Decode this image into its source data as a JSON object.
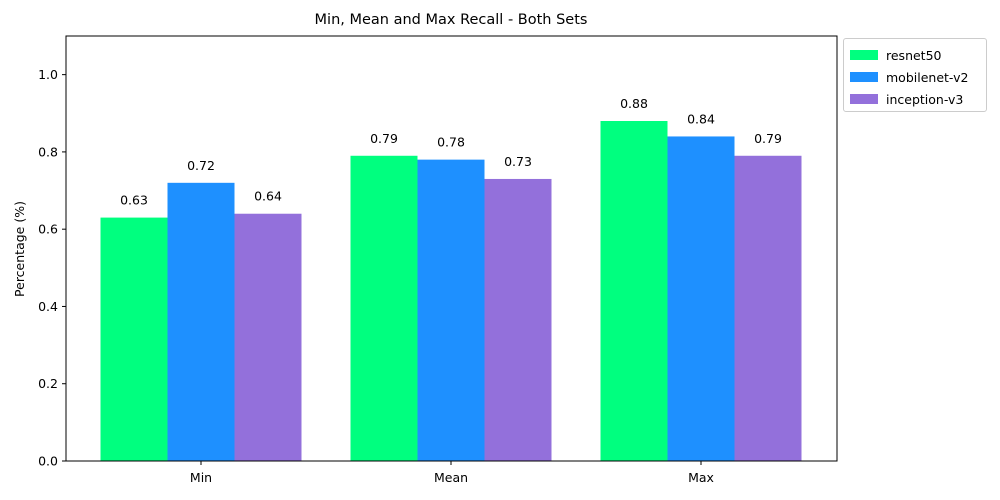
{
  "chart_data": {
    "type": "bar",
    "title": "Min, Mean and Max Recall - Both Sets",
    "xlabel": "",
    "ylabel": "Percentage (%)",
    "categories": [
      "Min",
      "Mean",
      "Max"
    ],
    "ylim": [
      0,
      1.1
    ],
    "yticks": [
      "0.0",
      "0.2",
      "0.4",
      "0.6",
      "0.8",
      "1.0"
    ],
    "grid": false,
    "legend_position": "outside top-right",
    "series": [
      {
        "name": "resnet50",
        "color": "#00FF7F",
        "values": [
          0.63,
          0.79,
          0.88
        ],
        "labels": [
          "0.63",
          "0.79",
          "0.88"
        ]
      },
      {
        "name": "mobilenet-v2",
        "color": "#1E90FF",
        "values": [
          0.72,
          0.78,
          0.84
        ],
        "labels": [
          "0.72",
          "0.78",
          "0.84"
        ]
      },
      {
        "name": "inception-v3",
        "color": "#9370DB",
        "values": [
          0.64,
          0.73,
          0.79
        ],
        "labels": [
          "0.64",
          "0.73",
          "0.79"
        ]
      }
    ]
  }
}
